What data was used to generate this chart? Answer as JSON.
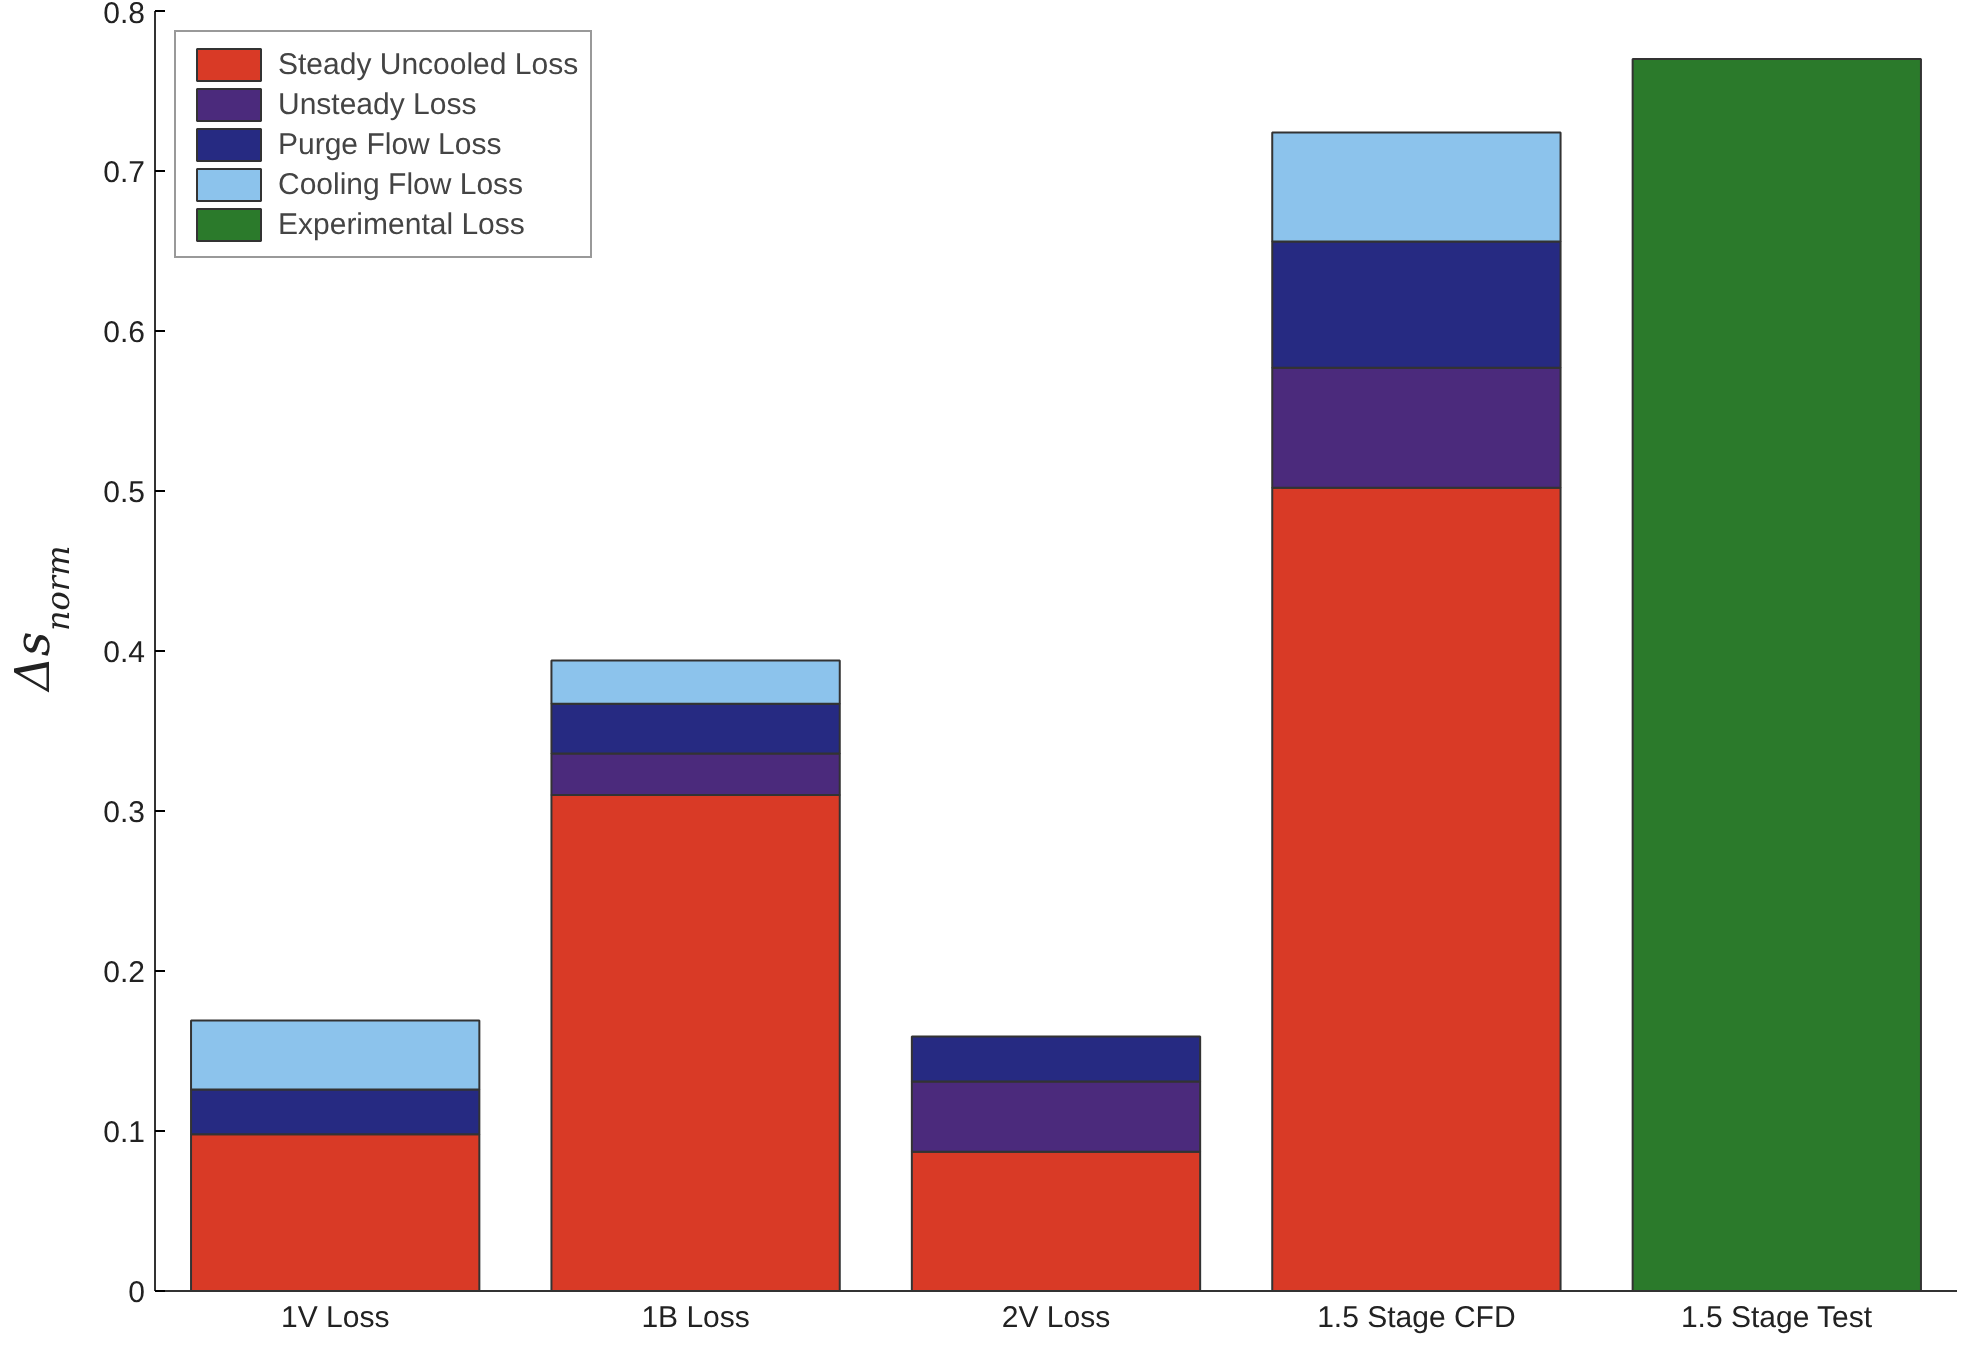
{
  "chart_data": {
    "type": "bar",
    "stacked": true,
    "ylabel": "Δs$_{norm}$",
    "categories": [
      "1V Loss",
      "1B Loss",
      "2V Loss",
      "1.5 Stage CFD",
      "1.5 Stage Test"
    ],
    "series": [
      {
        "name": "Steady Uncooled Loss",
        "color": "#d93a26",
        "values": [
          0.098,
          0.31,
          0.087,
          0.502,
          null
        ]
      },
      {
        "name": "Unsteady Loss",
        "color": "#4b2a7c",
        "values": [
          null,
          0.026,
          0.044,
          0.075,
          null
        ]
      },
      {
        "name": "Purge Flow Loss",
        "color": "#262a82",
        "values": [
          0.028,
          0.031,
          0.028,
          0.079,
          null
        ]
      },
      {
        "name": "Cooling Flow Loss",
        "color": "#8cc3ec",
        "values": [
          0.043,
          0.027,
          null,
          0.068,
          null
        ]
      },
      {
        "name": "Experimental Loss",
        "color": "#2b7a2b",
        "values": [
          null,
          null,
          null,
          null,
          0.77
        ]
      }
    ],
    "ylim": [
      0,
      0.8
    ],
    "yticks": [
      0,
      0.1,
      0.2,
      0.3,
      0.4,
      0.5,
      0.6,
      0.7,
      0.8
    ],
    "grid": false,
    "legend": "top left"
  }
}
